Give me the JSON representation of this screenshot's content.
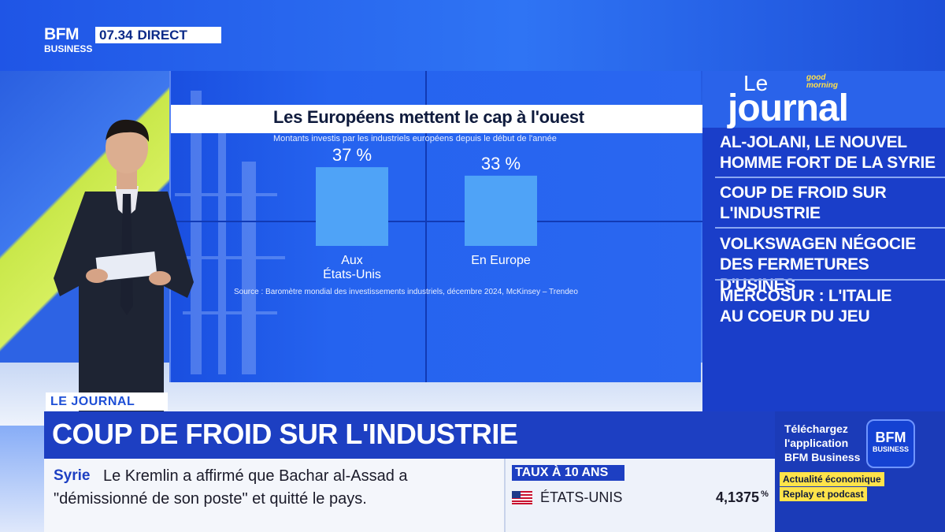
{
  "broadcast": {
    "logo_top": "BFM",
    "logo_bottom": "BUSINESS",
    "time": "07.34",
    "live_label": "DIRECT"
  },
  "chart_data": {
    "type": "bar",
    "title": "Les Européens mettent le cap à l'ouest",
    "subtitle": "Montants investis par les industriels européens depuis le début de l'année",
    "categories": [
      "Aux États-Unis",
      "En Europe"
    ],
    "category_lines": [
      [
        "Aux",
        "États-Unis"
      ],
      [
        "En Europe"
      ]
    ],
    "values": [
      37,
      33
    ],
    "value_labels": [
      "37 %",
      "33 %"
    ],
    "unit": "%",
    "ylim": [
      0,
      40
    ],
    "grid": false,
    "source": "Source : Baromètre mondial des investissements industriels, décembre 2024, McKinsey – Trendeo",
    "bar_color": "#4fa3f7"
  },
  "journal": {
    "prefix": "Le",
    "title": "journal",
    "badge_line1": "good",
    "badge_line2": "morning",
    "items": [
      {
        "line1": "AL-JOLANI, LE NOUVEL",
        "line2": "HOMME FORT DE LA SYRIE"
      },
      {
        "line1": "COUP DE FROID SUR",
        "line2": "L'INDUSTRIE"
      },
      {
        "line1": "VOLKSWAGEN NÉGOCIE",
        "line2": "DES FERMETURES D'USINES"
      },
      {
        "line1": "MERCOSUR : L'ITALIE",
        "line2": "AU COEUR DU JEU"
      }
    ]
  },
  "banner": {
    "tag": "LE JOURNAL",
    "headline": "COUP DE FROID SUR L'INDUSTRIE"
  },
  "ticker": {
    "label": "Syrie",
    "line1": "Le Kremlin a affirmé que Bachar al-Assad a",
    "line2": "\"démissionné de son poste\" et quitté le pays."
  },
  "rates": {
    "tag": "TAUX À 10 ANS",
    "country": "ÉTATS-UNIS",
    "value": "4,1375",
    "unit": "%"
  },
  "promo": {
    "line1": "Téléchargez",
    "line2": "l'application",
    "line3": "BFM Business",
    "logo_top": "BFM",
    "logo_bottom": "BUSINESS",
    "tag1": "Actualité économique",
    "tag2": "Replay et podcast"
  },
  "colors": {
    "brand_blue": "#1d3fc2",
    "accent_yellow": "#ffe34a"
  }
}
